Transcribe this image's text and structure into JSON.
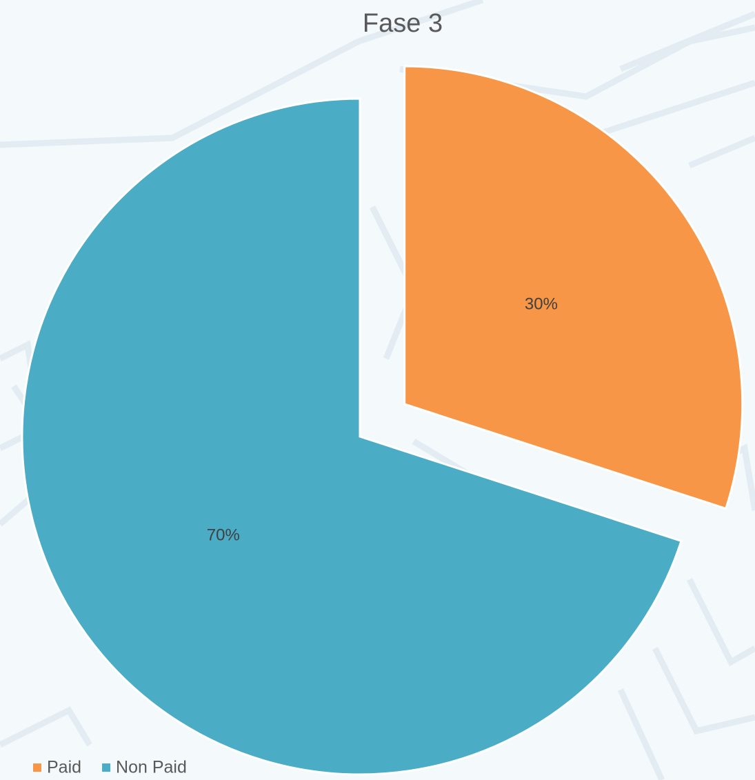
{
  "chart_data": {
    "type": "pie",
    "title": "Fase 3",
    "categories": [
      "Paid",
      "Non Paid"
    ],
    "values": [
      30,
      70
    ],
    "value_labels": [
      "30%",
      "70%"
    ],
    "colors": [
      "#f79646",
      "#4bacc6"
    ],
    "explode": [
      true,
      false
    ],
    "legend": "bottom-left"
  }
}
